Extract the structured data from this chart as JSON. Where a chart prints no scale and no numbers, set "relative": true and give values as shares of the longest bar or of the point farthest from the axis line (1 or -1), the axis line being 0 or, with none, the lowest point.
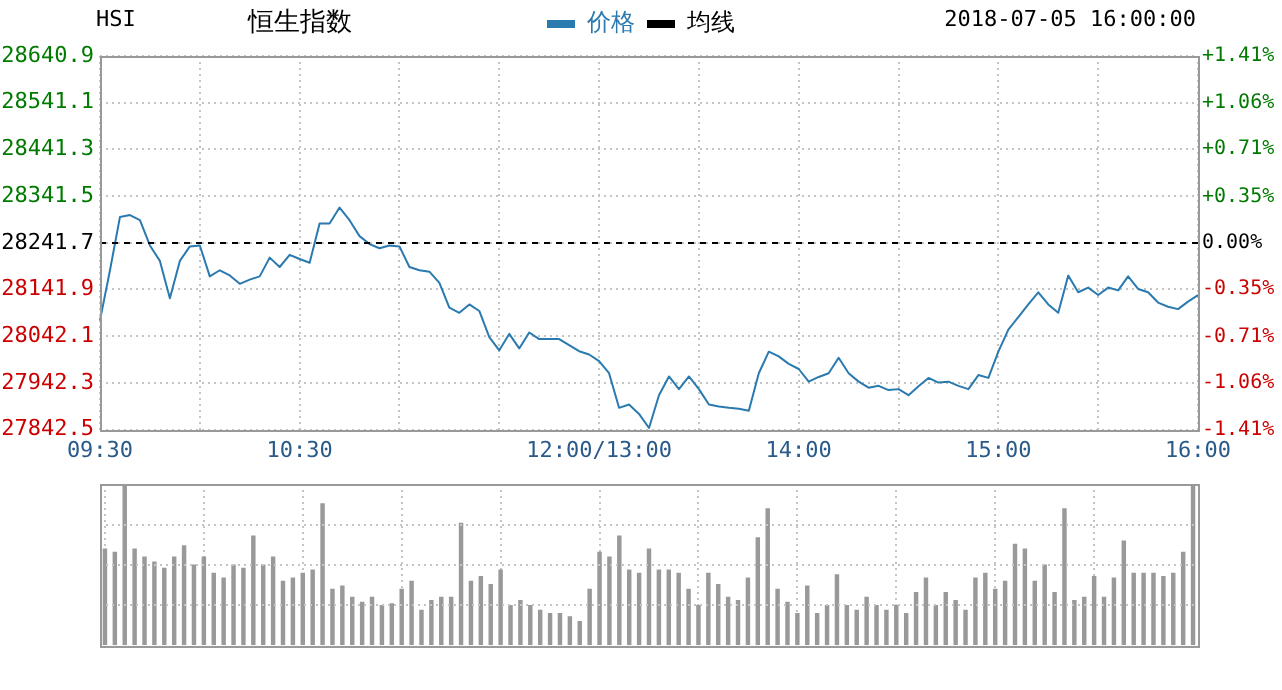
{
  "chart_data": [
    {
      "type": "line",
      "title": "恒生指数",
      "annotations": [
        "HSI",
        "2018-07-05 16:00:00"
      ],
      "categories": [
        "09:30",
        null,
        null,
        null,
        null,
        null,
        null,
        null,
        null,
        null,
        null,
        null,
        null,
        null,
        null,
        null,
        null,
        null,
        null,
        null,
        "10:30",
        null,
        null,
        null,
        null,
        null,
        null,
        null,
        null,
        null,
        null,
        null,
        null,
        null,
        null,
        null,
        null,
        null,
        null,
        null,
        null,
        null,
        null,
        null,
        null,
        null,
        null,
        null,
        null,
        null,
        "12:00/13:00",
        null,
        null,
        null,
        null,
        null,
        null,
        null,
        null,
        null,
        null,
        null,
        null,
        null,
        null,
        null,
        null,
        null,
        null,
        null,
        "14:00",
        null,
        null,
        null,
        null,
        null,
        null,
        null,
        null,
        null,
        null,
        null,
        null,
        null,
        null,
        null,
        null,
        null,
        null,
        null,
        "15:00",
        null,
        null,
        null,
        null,
        null,
        null,
        null,
        null,
        null,
        null,
        null,
        null,
        null,
        null,
        null,
        null,
        null,
        null,
        null,
        "16:00"
      ],
      "series": [
        {
          "name": "价格",
          "color": "#2a7ab0",
          "values": [
            28076,
            28183,
            28297,
            28301,
            28290,
            28236,
            28203,
            28123,
            28203,
            28234,
            28236,
            28170,
            28183,
            28172,
            28154,
            28163,
            28170,
            28210,
            28190,
            28216,
            28207,
            28199,
            28283,
            28283,
            28317,
            28290,
            28256,
            28239,
            28230,
            28236,
            28234,
            28190,
            28183,
            28180,
            28156,
            28103,
            28092,
            28110,
            28096,
            28040,
            28012,
            28047,
            28016,
            28050,
            28036,
            28036,
            28036,
            28023,
            28010,
            28003,
            27989,
            27963,
            27889,
            27896,
            27876,
            27846,
            27916,
            27956,
            27929,
            27956,
            27929,
            27896,
            27892,
            27889,
            27887,
            27883,
            27963,
            28009,
            27999,
            27983,
            27972,
            27945,
            27955,
            27963,
            27996,
            27963,
            27945,
            27932,
            27936,
            27927,
            27929,
            27916,
            27935,
            27953,
            27943,
            27945,
            27936,
            27929,
            27959,
            27953,
            28009,
            28056,
            28083,
            28110,
            28136,
            28110,
            28092,
            28172,
            28136,
            28146,
            28130,
            28146,
            28140,
            28170,
            28143,
            28136,
            28114,
            28105,
            28100,
            28116,
            28130
          ]
        },
        {
          "name": "均线",
          "color": "#000000",
          "values": [
            null,
            null,
            null,
            null,
            null,
            null,
            null,
            null,
            null,
            null,
            null,
            null,
            null,
            null,
            null,
            null,
            null,
            null,
            null,
            null,
            null,
            null,
            null,
            null,
            null,
            null,
            null,
            null,
            null,
            null,
            null,
            null,
            null,
            null,
            null,
            null,
            null,
            null,
            null,
            null,
            null,
            null,
            null,
            null,
            null,
            null,
            null,
            null,
            null,
            null,
            null,
            null,
            null,
            null,
            null,
            null,
            null,
            null,
            null,
            null,
            null,
            null,
            null,
            null,
            null,
            null,
            null,
            null,
            null,
            null,
            null,
            null,
            null,
            null,
            null,
            null,
            null,
            null,
            null,
            null,
            null,
            null,
            null,
            null,
            null,
            null,
            null,
            null,
            null,
            null,
            null,
            null,
            null,
            null,
            null,
            null,
            null,
            null,
            null,
            null,
            null,
            null,
            null,
            null,
            null,
            null,
            null,
            null,
            null,
            null,
            null
          ]
        }
      ],
      "ylim": [
        27842.5,
        28640.9
      ],
      "yticks": [
        27842.5,
        27942.3,
        28042.1,
        28141.9,
        28241.7,
        28341.5,
        28441.3,
        28541.1,
        28640.9
      ],
      "y2lim": [
        -1.41,
        1.41
      ],
      "y2ticks": [
        {
          "value": -1.41,
          "label": "-1.41%"
        },
        {
          "value": -1.06,
          "label": "-1.06%"
        },
        {
          "value": -0.71,
          "label": "-0.71%"
        },
        {
          "value": -0.35,
          "label": "-0.35%"
        },
        {
          "value": 0,
          "label": "0.00%"
        },
        {
          "value": 0.35,
          "label": "+0.35%"
        },
        {
          "value": 0.71,
          "label": "+0.71%"
        },
        {
          "value": 1.06,
          "label": "+1.06%"
        },
        {
          "value": 1.41,
          "label": "+1.41%"
        }
      ],
      "ref_lines": [
        {
          "axis": "y",
          "value": 28241.7,
          "color": "#000000",
          "line_style": "dashed"
        }
      ],
      "grid": true,
      "legend": "top",
      "marker": "none",
      "line_style": "solid"
    },
    {
      "type": "bar",
      "relative": true,
      "color": "#999999",
      "grid": true,
      "categories": [
        null,
        null,
        null,
        null,
        null,
        null,
        null,
        null,
        null,
        null,
        null,
        null,
        null,
        null,
        null,
        null,
        null,
        null,
        null,
        null,
        null,
        null,
        null,
        null,
        null,
        null,
        null,
        null,
        null,
        null,
        null,
        null,
        null,
        null,
        null,
        null,
        null,
        null,
        null,
        null,
        null,
        null,
        null,
        null,
        null,
        null,
        null,
        null,
        null,
        null,
        null,
        null,
        null,
        null,
        null,
        null,
        null,
        null,
        null,
        null,
        null,
        null,
        null,
        null,
        null,
        null,
        null,
        null,
        null,
        null,
        null,
        null,
        null,
        null,
        null,
        null,
        null,
        null,
        null,
        null,
        null,
        null,
        null,
        null,
        null,
        null,
        null,
        null,
        null,
        null,
        null,
        null,
        null,
        null,
        null,
        null,
        null,
        null,
        null,
        null,
        null,
        null,
        null,
        null,
        null,
        null,
        null,
        null,
        null,
        null,
        null
      ],
      "values": [
        0.6,
        0.58,
        1.0,
        0.6,
        0.55,
        0.52,
        0.48,
        0.55,
        0.62,
        0.5,
        0.55,
        0.45,
        0.42,
        0.5,
        0.48,
        0.68,
        0.5,
        0.55,
        0.4,
        0.42,
        0.45,
        0.47,
        0.88,
        0.35,
        0.37,
        0.3,
        0.27,
        0.3,
        0.25,
        0.26,
        0.35,
        0.4,
        0.22,
        0.28,
        0.3,
        0.3,
        0.76,
        0.4,
        0.43,
        0.38,
        0.47,
        0.25,
        0.28,
        0.25,
        0.22,
        0.2,
        0.2,
        0.18,
        0.15,
        0.35,
        0.58,
        0.55,
        0.68,
        0.47,
        0.45,
        0.6,
        0.47,
        0.47,
        0.45,
        0.35,
        0.25,
        0.45,
        0.38,
        0.3,
        0.28,
        0.42,
        0.67,
        0.85,
        0.35,
        0.27,
        0.2,
        0.37,
        0.2,
        0.25,
        0.44,
        0.25,
        0.22,
        0.3,
        0.25,
        0.22,
        0.25,
        0.2,
        0.33,
        0.42,
        0.25,
        0.33,
        0.28,
        0.22,
        0.42,
        0.45,
        0.35,
        0.4,
        0.63,
        0.6,
        0.4,
        0.5,
        0.33,
        0.85,
        0.28,
        0.3,
        0.43,
        0.3,
        0.42,
        0.65,
        0.45,
        0.45,
        0.45,
        0.43,
        0.45,
        0.58,
        1.0
      ]
    }
  ]
}
